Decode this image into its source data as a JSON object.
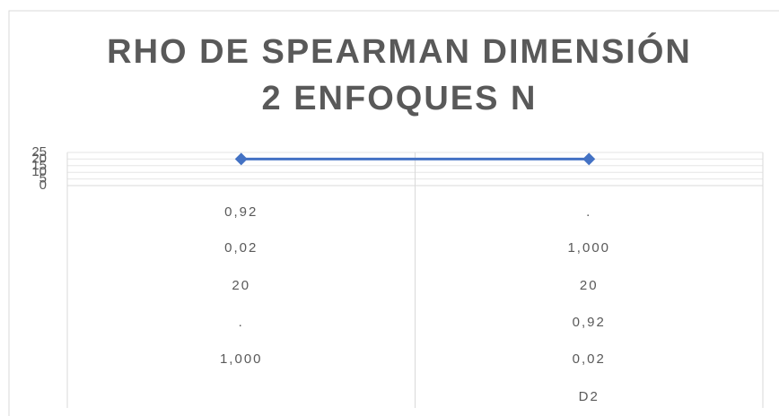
{
  "chart_data": {
    "type": "line",
    "title": [
      "RHO DE SPEARMAN DIMENSIÓN",
      "2 ENFOQUES N"
    ],
    "categories": [
      [
        "0,92",
        "0,02",
        "20",
        ".",
        "1,000",
        null
      ],
      [
        ".",
        "1,000",
        "20",
        "0,92",
        "0,02",
        "D2"
      ]
    ],
    "series": [
      {
        "color": "#4472c4",
        "values": [
          20,
          20
        ]
      }
    ],
    "ylim": [
      0,
      25
    ],
    "yticks": [
      0,
      5,
      10,
      15,
      20,
      25
    ],
    "grid": true
  }
}
